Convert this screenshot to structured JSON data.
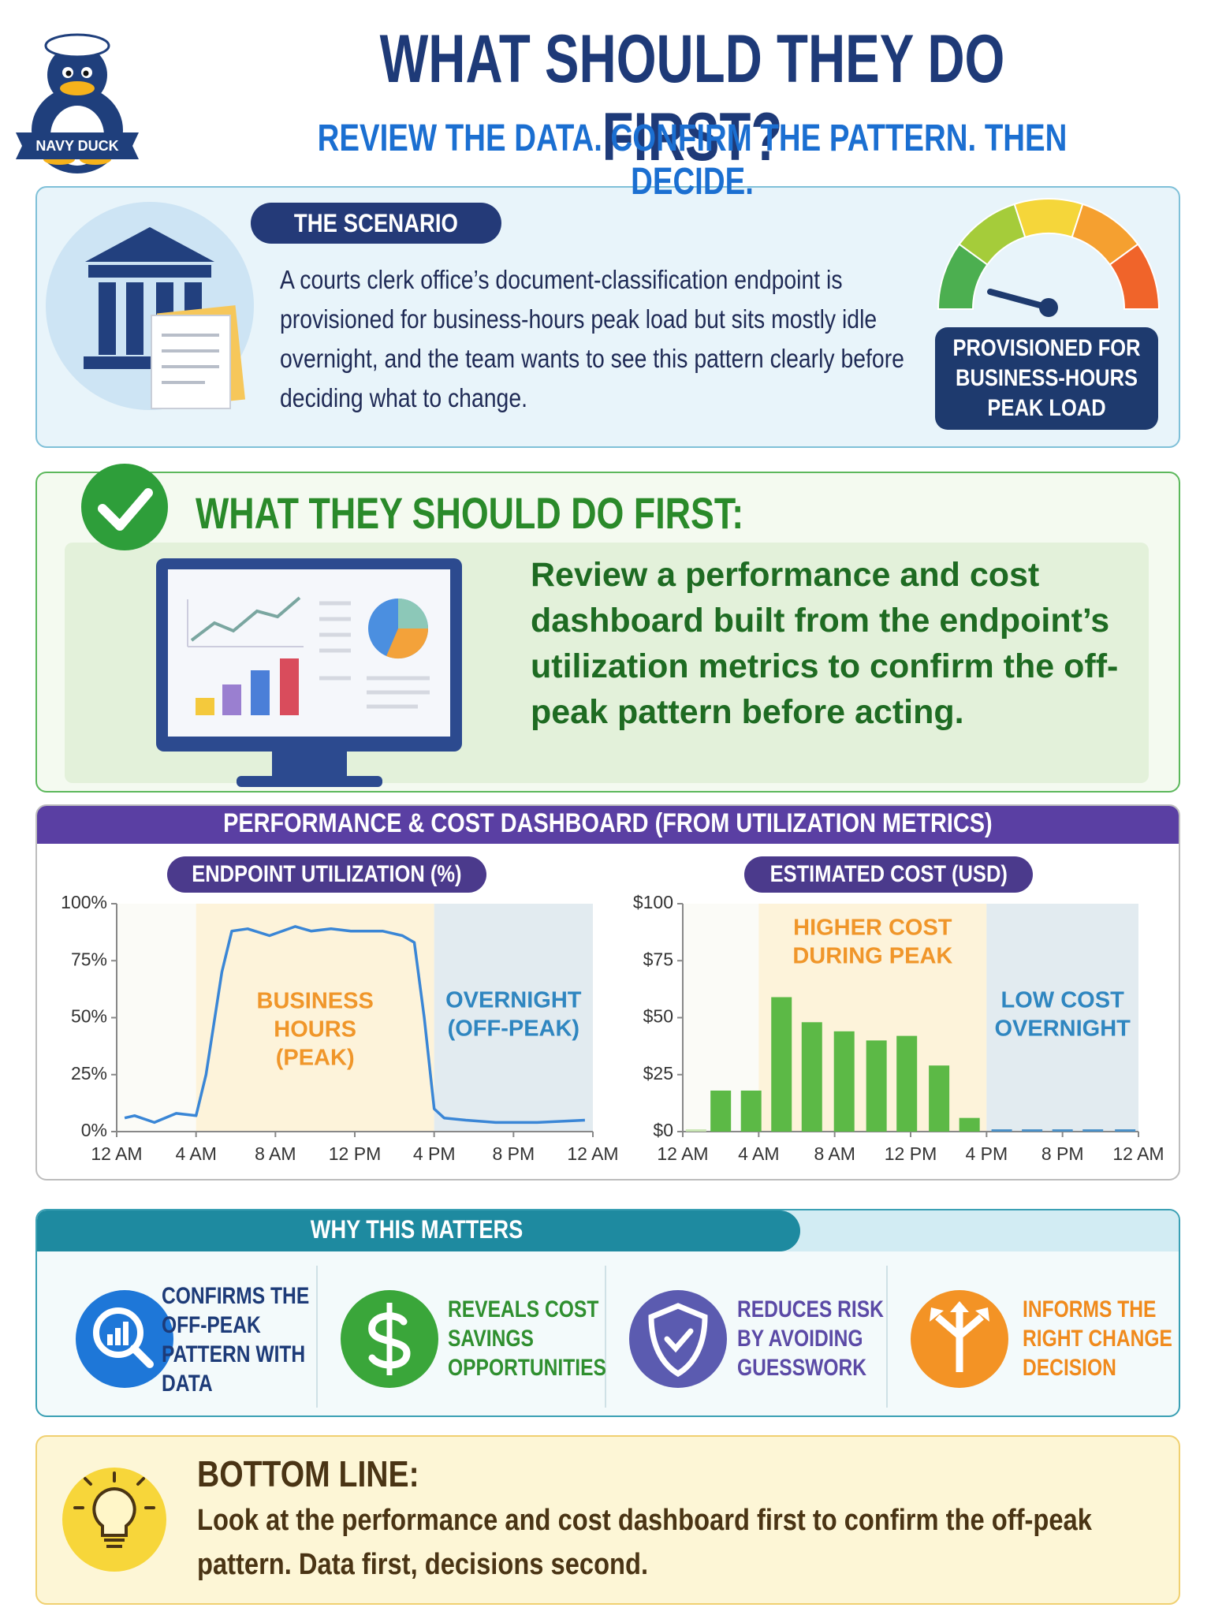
{
  "header": {
    "logo_text": "NAVY DUCK",
    "title": "WHAT SHOULD THEY DO FIRST?",
    "subtitle": "REVIEW THE DATA. CONFIRM THE PATTERN. THEN DECIDE."
  },
  "scenario": {
    "label": "THE SCENARIO",
    "text": "A courts clerk office’s document-classification endpoint is provisioned for business-hours peak load but sits mostly idle overnight, and the team wants to see this pattern clearly before deciding what to change.",
    "badge": "PROVISIONED FOR BUSINESS-HOURS PEAK LOAD"
  },
  "first_step": {
    "heading": "WHAT THEY SHOULD DO FIRST:",
    "text": "Review a performance and cost dashboard built from the endpoint’s utilization metrics to confirm the off-peak pattern before acting."
  },
  "dashboard": {
    "title": "PERFORMANCE & COST DASHBOARD (FROM UTILIZATION METRICS)"
  },
  "chart_data": [
    {
      "type": "line",
      "title": "ENDPOINT UTILIZATION (%)",
      "color": "#3a86d6",
      "x": [
        0.4,
        0.9,
        1.9,
        3.0,
        4.0,
        4.5,
        5.3,
        5.8,
        6.6,
        7.7,
        9.0,
        9.8,
        10.8,
        11.8,
        13.4,
        14.4,
        15.0,
        15.5,
        16.0,
        16.5,
        17.6,
        19.1,
        21.2,
        23.6
      ],
      "values": [
        6,
        7,
        4,
        8,
        7,
        25,
        70,
        88,
        89,
        86,
        90,
        88,
        89,
        88,
        88,
        86,
        83,
        50,
        10,
        6,
        5,
        4,
        4,
        5
      ],
      "xlim": [
        0,
        24
      ],
      "xticks": [
        {
          "value": 0,
          "label": "12 AM"
        },
        {
          "value": 4,
          "label": "4 AM"
        },
        {
          "value": 8,
          "label": "8 AM"
        },
        {
          "value": 12,
          "label": "12 PM"
        },
        {
          "value": 16,
          "label": "4 PM"
        },
        {
          "value": 20,
          "label": "8 PM"
        },
        {
          "value": 24,
          "label": "12 AM"
        }
      ],
      "ylim": [
        0,
        100
      ],
      "yticks": [
        {
          "value": 0,
          "label": "0%"
        },
        {
          "value": 25,
          "label": "25%"
        },
        {
          "value": 50,
          "label": "50%"
        },
        {
          "value": 75,
          "label": "75%"
        },
        {
          "value": 100,
          "label": "100%"
        }
      ],
      "regions": [
        {
          "from": 4,
          "to": 16,
          "color": "#fdf3da",
          "label": [
            "BUSINESS",
            "HOURS",
            "(PEAK)"
          ],
          "label_color": "#f0962a"
        },
        {
          "from": 16,
          "to": 24,
          "color": "#e2ebf0",
          "label": [
            "OVERNIGHT",
            "(OFF-PEAK)"
          ],
          "label_color": "#2f86c0"
        }
      ]
    },
    {
      "type": "bar",
      "title": "ESTIMATED COST (USD)",
      "x": [
        0.7,
        2.0,
        3.6,
        5.2,
        6.8,
        8.5,
        10.2,
        11.8,
        13.5,
        15.1,
        16.8,
        18.4,
        20.0,
        21.6,
        23.3
      ],
      "values": [
        1,
        18,
        18,
        59,
        48,
        44,
        40,
        42,
        29,
        6,
        1,
        1,
        1,
        1,
        1
      ],
      "colors": [
        "#c9e6b3",
        "#5cb946",
        "#5cb946",
        "#5cb946",
        "#5cb946",
        "#5cb946",
        "#5cb946",
        "#5cb946",
        "#5cb946",
        "#5cb946",
        "#4a90c8",
        "#4a90c8",
        "#4a90c8",
        "#4a90c8",
        "#4a90c8"
      ],
      "xlim": [
        0,
        24
      ],
      "xticks": [
        {
          "value": 0,
          "label": "12 AM"
        },
        {
          "value": 4,
          "label": "4 AM"
        },
        {
          "value": 8,
          "label": "8 AM"
        },
        {
          "value": 12,
          "label": "12 PM"
        },
        {
          "value": 16,
          "label": "4 PM"
        },
        {
          "value": 20,
          "label": "8 PM"
        },
        {
          "value": 24,
          "label": "12 AM"
        }
      ],
      "ylim": [
        0,
        100
      ],
      "yticks": [
        {
          "value": 0,
          "label": "$0"
        },
        {
          "value": 25,
          "label": "$25"
        },
        {
          "value": 50,
          "label": "$50"
        },
        {
          "value": 75,
          "label": "$75"
        },
        {
          "value": 100,
          "label": "$100"
        }
      ],
      "regions": [
        {
          "from": 4,
          "to": 16,
          "color": "#fdf3da",
          "label": [
            "HIGHER COST",
            "DURING PEAK"
          ],
          "label_color": "#f0962a"
        },
        {
          "from": 16,
          "to": 24,
          "color": "#e2ebf0",
          "label": [
            "LOW COST",
            "OVERNIGHT"
          ],
          "label_color": "#2f86c0"
        }
      ]
    }
  ],
  "why_it_matters": {
    "title": "WHY THIS MATTERS",
    "items": [
      {
        "text": "CONFIRMS THE OFF-PEAK PATTERN WITH DATA",
        "color": "#1d3b78",
        "icon_color": "#1e77d8"
      },
      {
        "text": "REVEALS COST SAVINGS OPPORTUNITIES",
        "color": "#2f8f2f",
        "icon_color": "#3aa63a"
      },
      {
        "text": "REDUCES RISK BY AVOIDING GUESSWORK",
        "color": "#5b4aa6",
        "icon_color": "#5b5bb0"
      },
      {
        "text": "INFORMS THE RIGHT CHANGE DECISION",
        "color": "#f08a1c",
        "icon_color": "#f39325"
      }
    ]
  },
  "bottom_line": {
    "heading": "BOTTOM LINE:",
    "text": "Look at the performance and cost dashboard first to confirm the off-peak pattern. Data first, decisions second."
  }
}
